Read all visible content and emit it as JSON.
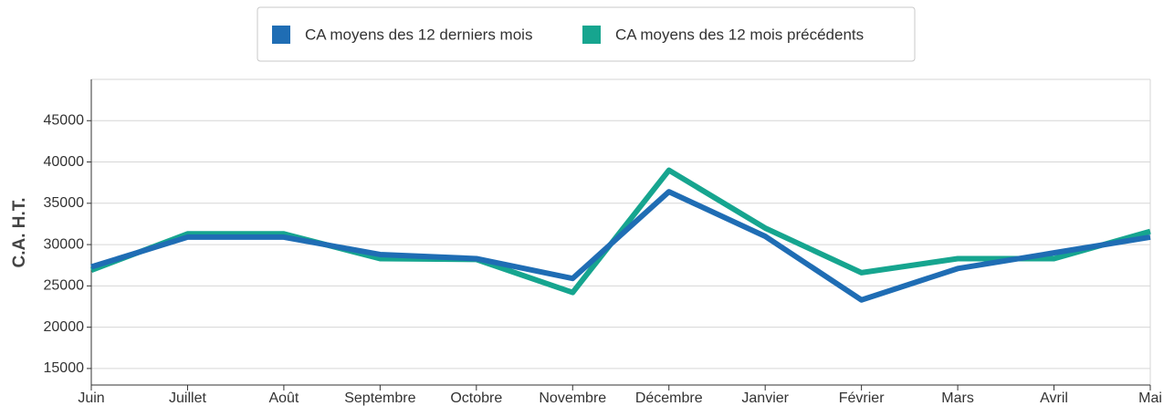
{
  "chart_data": {
    "type": "line",
    "y_label": "C.A. H.T.",
    "categories": [
      "Juin",
      "Juillet",
      "Août",
      "Septembre",
      "Octobre",
      "Novembre",
      "Décembre",
      "Janvier",
      "Février",
      "Mars",
      "Avril",
      "Mai"
    ],
    "series": [
      {
        "name": "CA moyens des 12 derniers mois",
        "color": "#1f6db4",
        "values": [
          27300,
          30900,
          30900,
          28800,
          28300,
          25900,
          36400,
          31000,
          23300,
          27100,
          29000,
          30900
        ]
      },
      {
        "name": "CA moyens des 12 mois précédents",
        "color": "#16a58f",
        "values": [
          26900,
          31300,
          31300,
          28300,
          28200,
          24200,
          39000,
          32000,
          26600,
          28300,
          28300,
          31600
        ]
      }
    ],
    "ylim": [
      13000,
      50000
    ],
    "yticks": [
      15000,
      20000,
      25000,
      30000,
      35000,
      40000,
      45000
    ],
    "grid": true,
    "legend": "top"
  }
}
